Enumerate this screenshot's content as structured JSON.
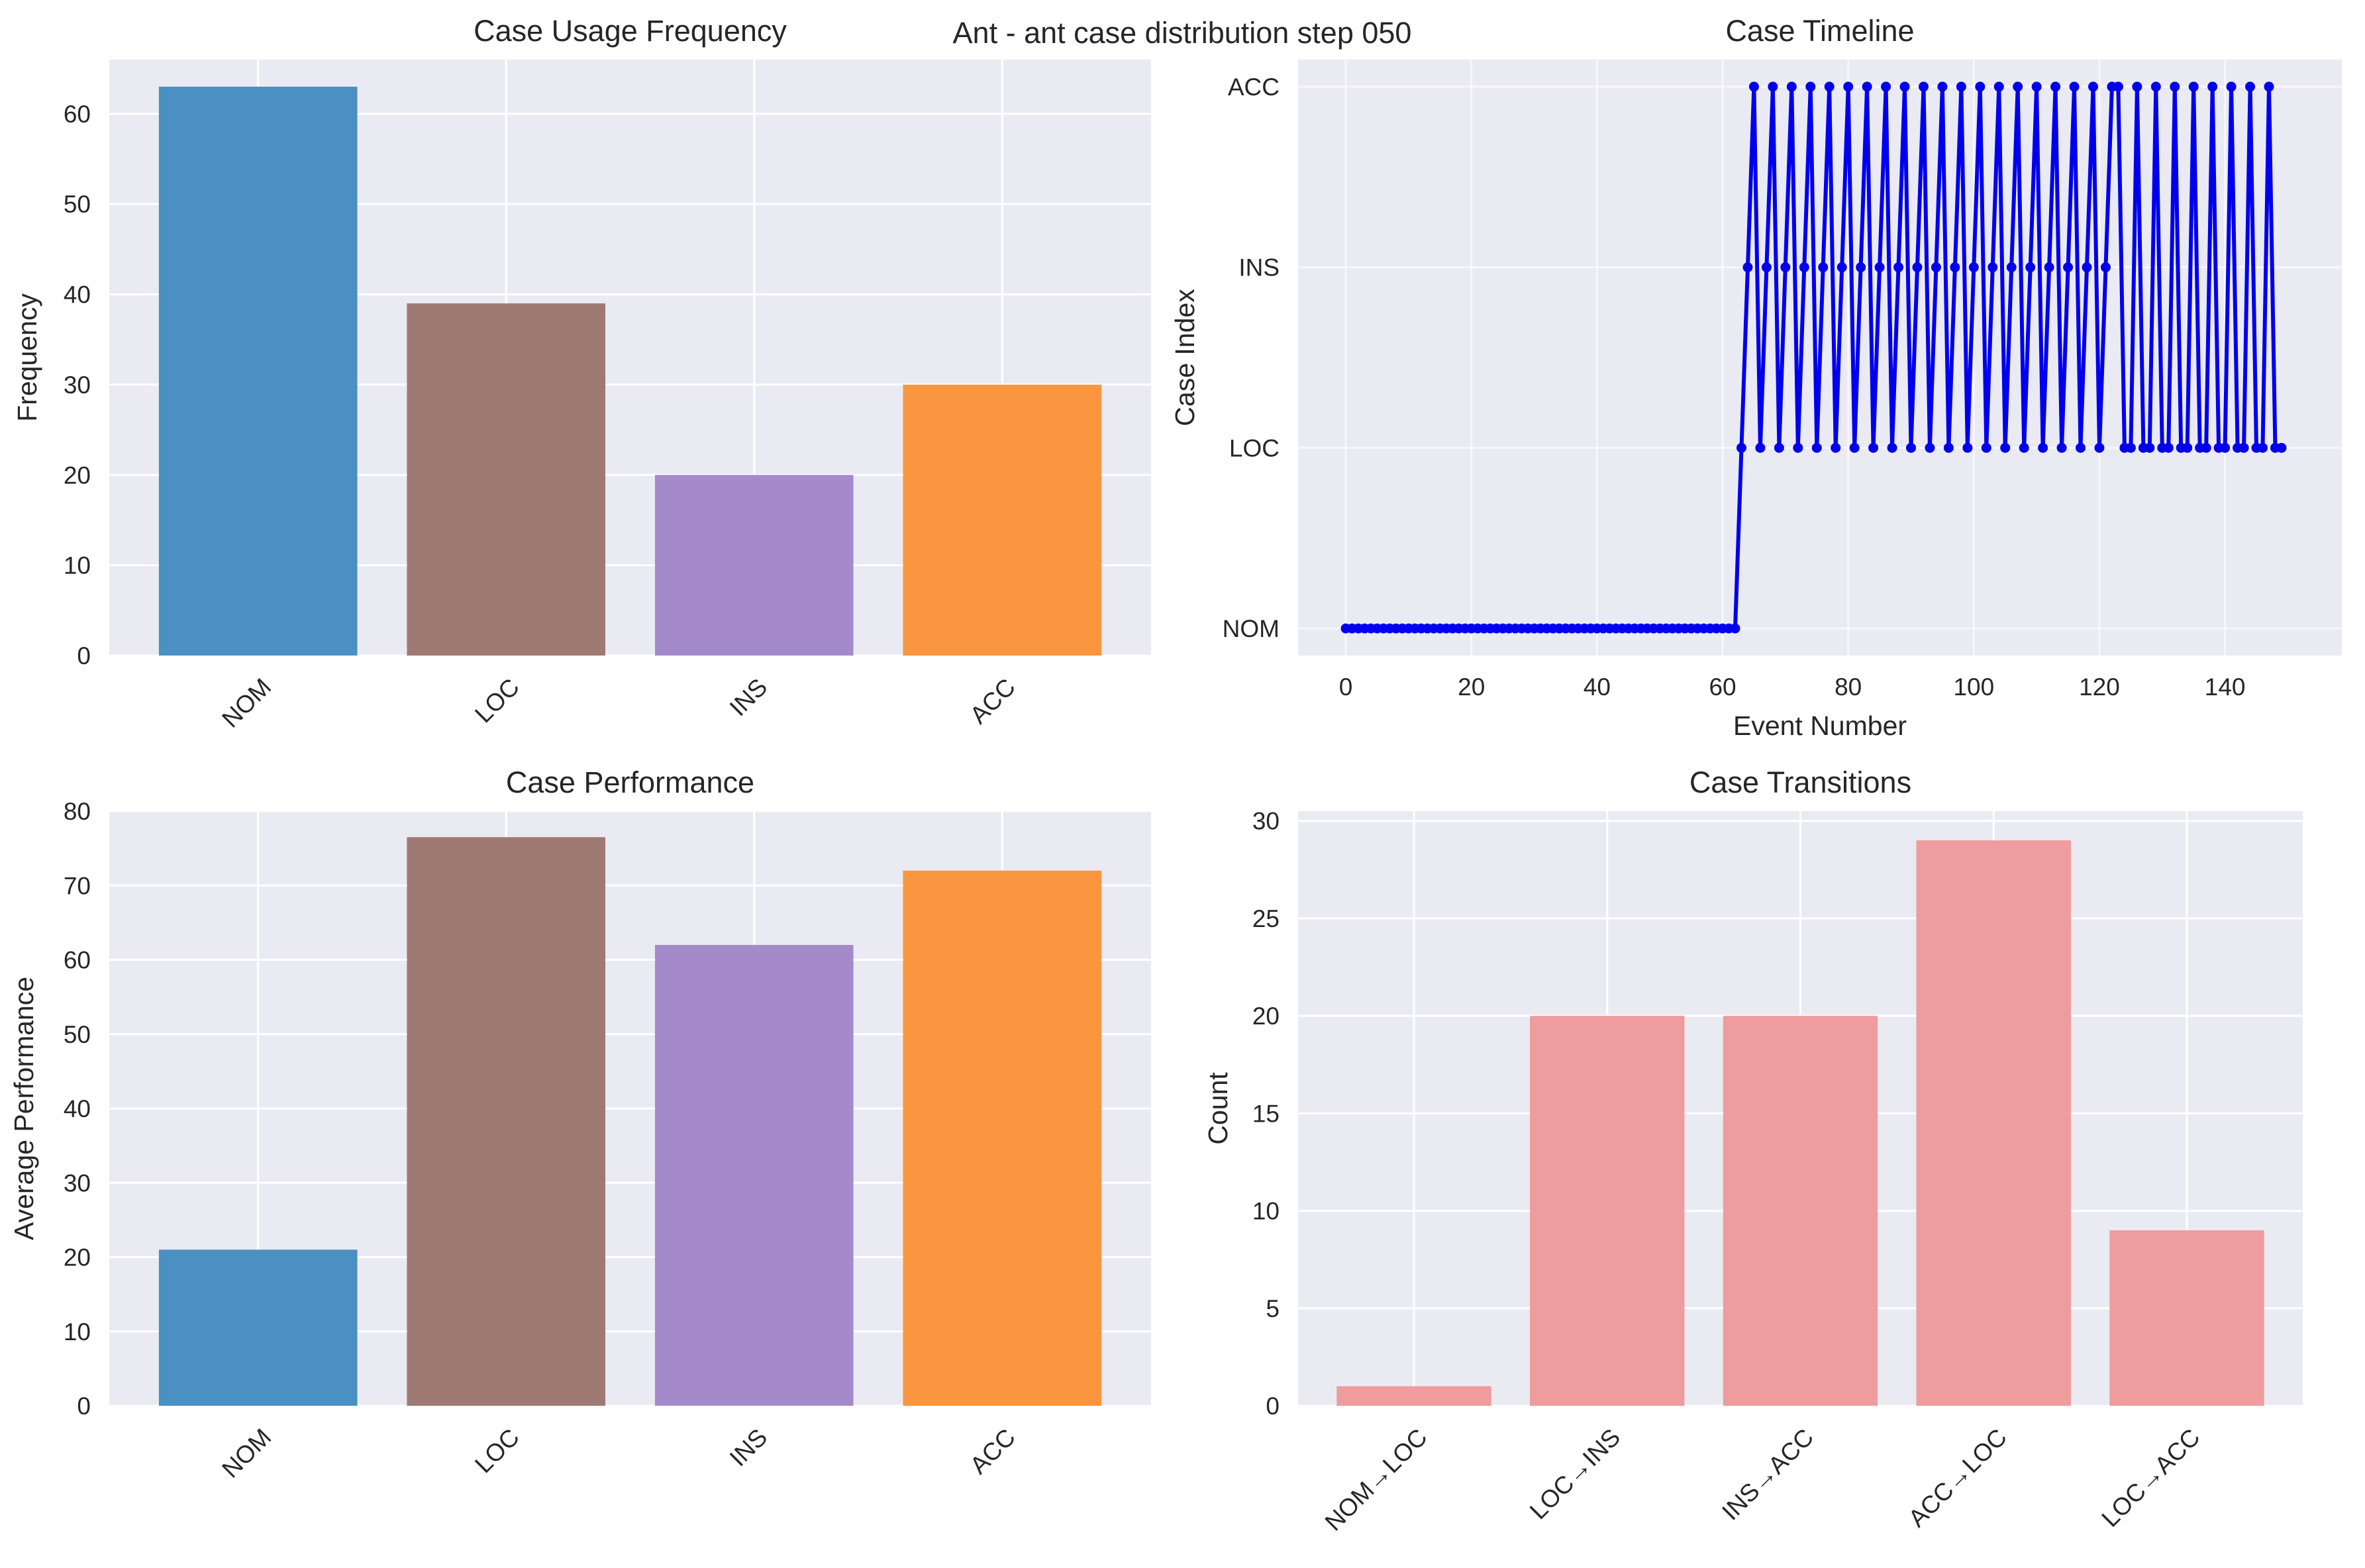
{
  "suptitle": "Ant - ant case distribution step 050",
  "colors": {
    "axes_bg": "#EAEAF2",
    "grid": "#FFFFFF",
    "NOM": "#4A90C2",
    "LOC": "#9E7A72",
    "INS": "#A48ACB",
    "ACC": "#F9963F",
    "transition": "#EE9C9E",
    "timeline": "#0000EE"
  },
  "chart_data": [
    {
      "id": "usage",
      "type": "bar",
      "title": "Case Usage Frequency",
      "xlabel": "",
      "ylabel": "Frequency",
      "categories": [
        "NOM",
        "LOC",
        "INS",
        "ACC"
      ],
      "values": [
        63,
        39,
        20,
        30
      ],
      "ylim": [
        0,
        66
      ],
      "yticks": [
        0,
        10,
        20,
        30,
        40,
        50,
        60
      ],
      "grid": true,
      "legend": "none"
    },
    {
      "id": "timeline",
      "type": "line",
      "title": "Case Timeline",
      "xlabel": "Event Number",
      "ylabel": "Case Index",
      "ylim": [
        -0.15,
        3.15
      ],
      "xlim": [
        -7.6,
        158.6
      ],
      "xticks": [
        0,
        20,
        40,
        60,
        80,
        100,
        120,
        140
      ],
      "ytick_labels": [
        "NOM",
        "LOC",
        "INS",
        "ACC"
      ],
      "grid": true,
      "legend": "none",
      "y": [
        0,
        0,
        0,
        0,
        0,
        0,
        0,
        0,
        0,
        0,
        0,
        0,
        0,
        0,
        0,
        0,
        0,
        0,
        0,
        0,
        0,
        0,
        0,
        0,
        0,
        0,
        0,
        0,
        0,
        0,
        0,
        0,
        0,
        0,
        0,
        0,
        0,
        0,
        0,
        0,
        0,
        0,
        0,
        0,
        0,
        0,
        0,
        0,
        0,
        0,
        0,
        0,
        0,
        0,
        0,
        0,
        0,
        0,
        0,
        0,
        0,
        0,
        0,
        1,
        2,
        3,
        1,
        2,
        3,
        1,
        2,
        3,
        1,
        2,
        3,
        1,
        2,
        3,
        1,
        2,
        3,
        1,
        2,
        3,
        1,
        2,
        3,
        1,
        2,
        3,
        1,
        2,
        3,
        1,
        2,
        3,
        1,
        2,
        3,
        1,
        2,
        3,
        1,
        2,
        3,
        1,
        2,
        3,
        1,
        2,
        3,
        1,
        2,
        3,
        1,
        2,
        3,
        1,
        2,
        3,
        1,
        2,
        3,
        3,
        1,
        1,
        3,
        1,
        1,
        3,
        1,
        1,
        3,
        1,
        1,
        3,
        1,
        1,
        3,
        1,
        1,
        3,
        1,
        1,
        3,
        1,
        1,
        3,
        1,
        1
      ]
    },
    {
      "id": "performance",
      "type": "bar",
      "title": "Case Performance",
      "xlabel": "",
      "ylabel": "Average Performance",
      "categories": [
        "NOM",
        "LOC",
        "INS",
        "ACC"
      ],
      "values": [
        21,
        76.5,
        62,
        72
      ],
      "ylim": [
        0,
        80
      ],
      "yticks": [
        0,
        10,
        20,
        30,
        40,
        50,
        60,
        70,
        80
      ],
      "grid": true,
      "legend": "none"
    },
    {
      "id": "transitions",
      "type": "bar",
      "title": "Case Transitions",
      "xlabel": "",
      "ylabel": "Count",
      "categories": [
        "NOM→LOC",
        "LOC→INS",
        "INS→ACC",
        "ACC→LOC",
        "LOC→ACC"
      ],
      "values": [
        1,
        20,
        20,
        29,
        9
      ],
      "ylim": [
        0,
        30.5
      ],
      "yticks": [
        0,
        5,
        10,
        15,
        20,
        25,
        30
      ],
      "grid": true,
      "legend": "none"
    }
  ]
}
